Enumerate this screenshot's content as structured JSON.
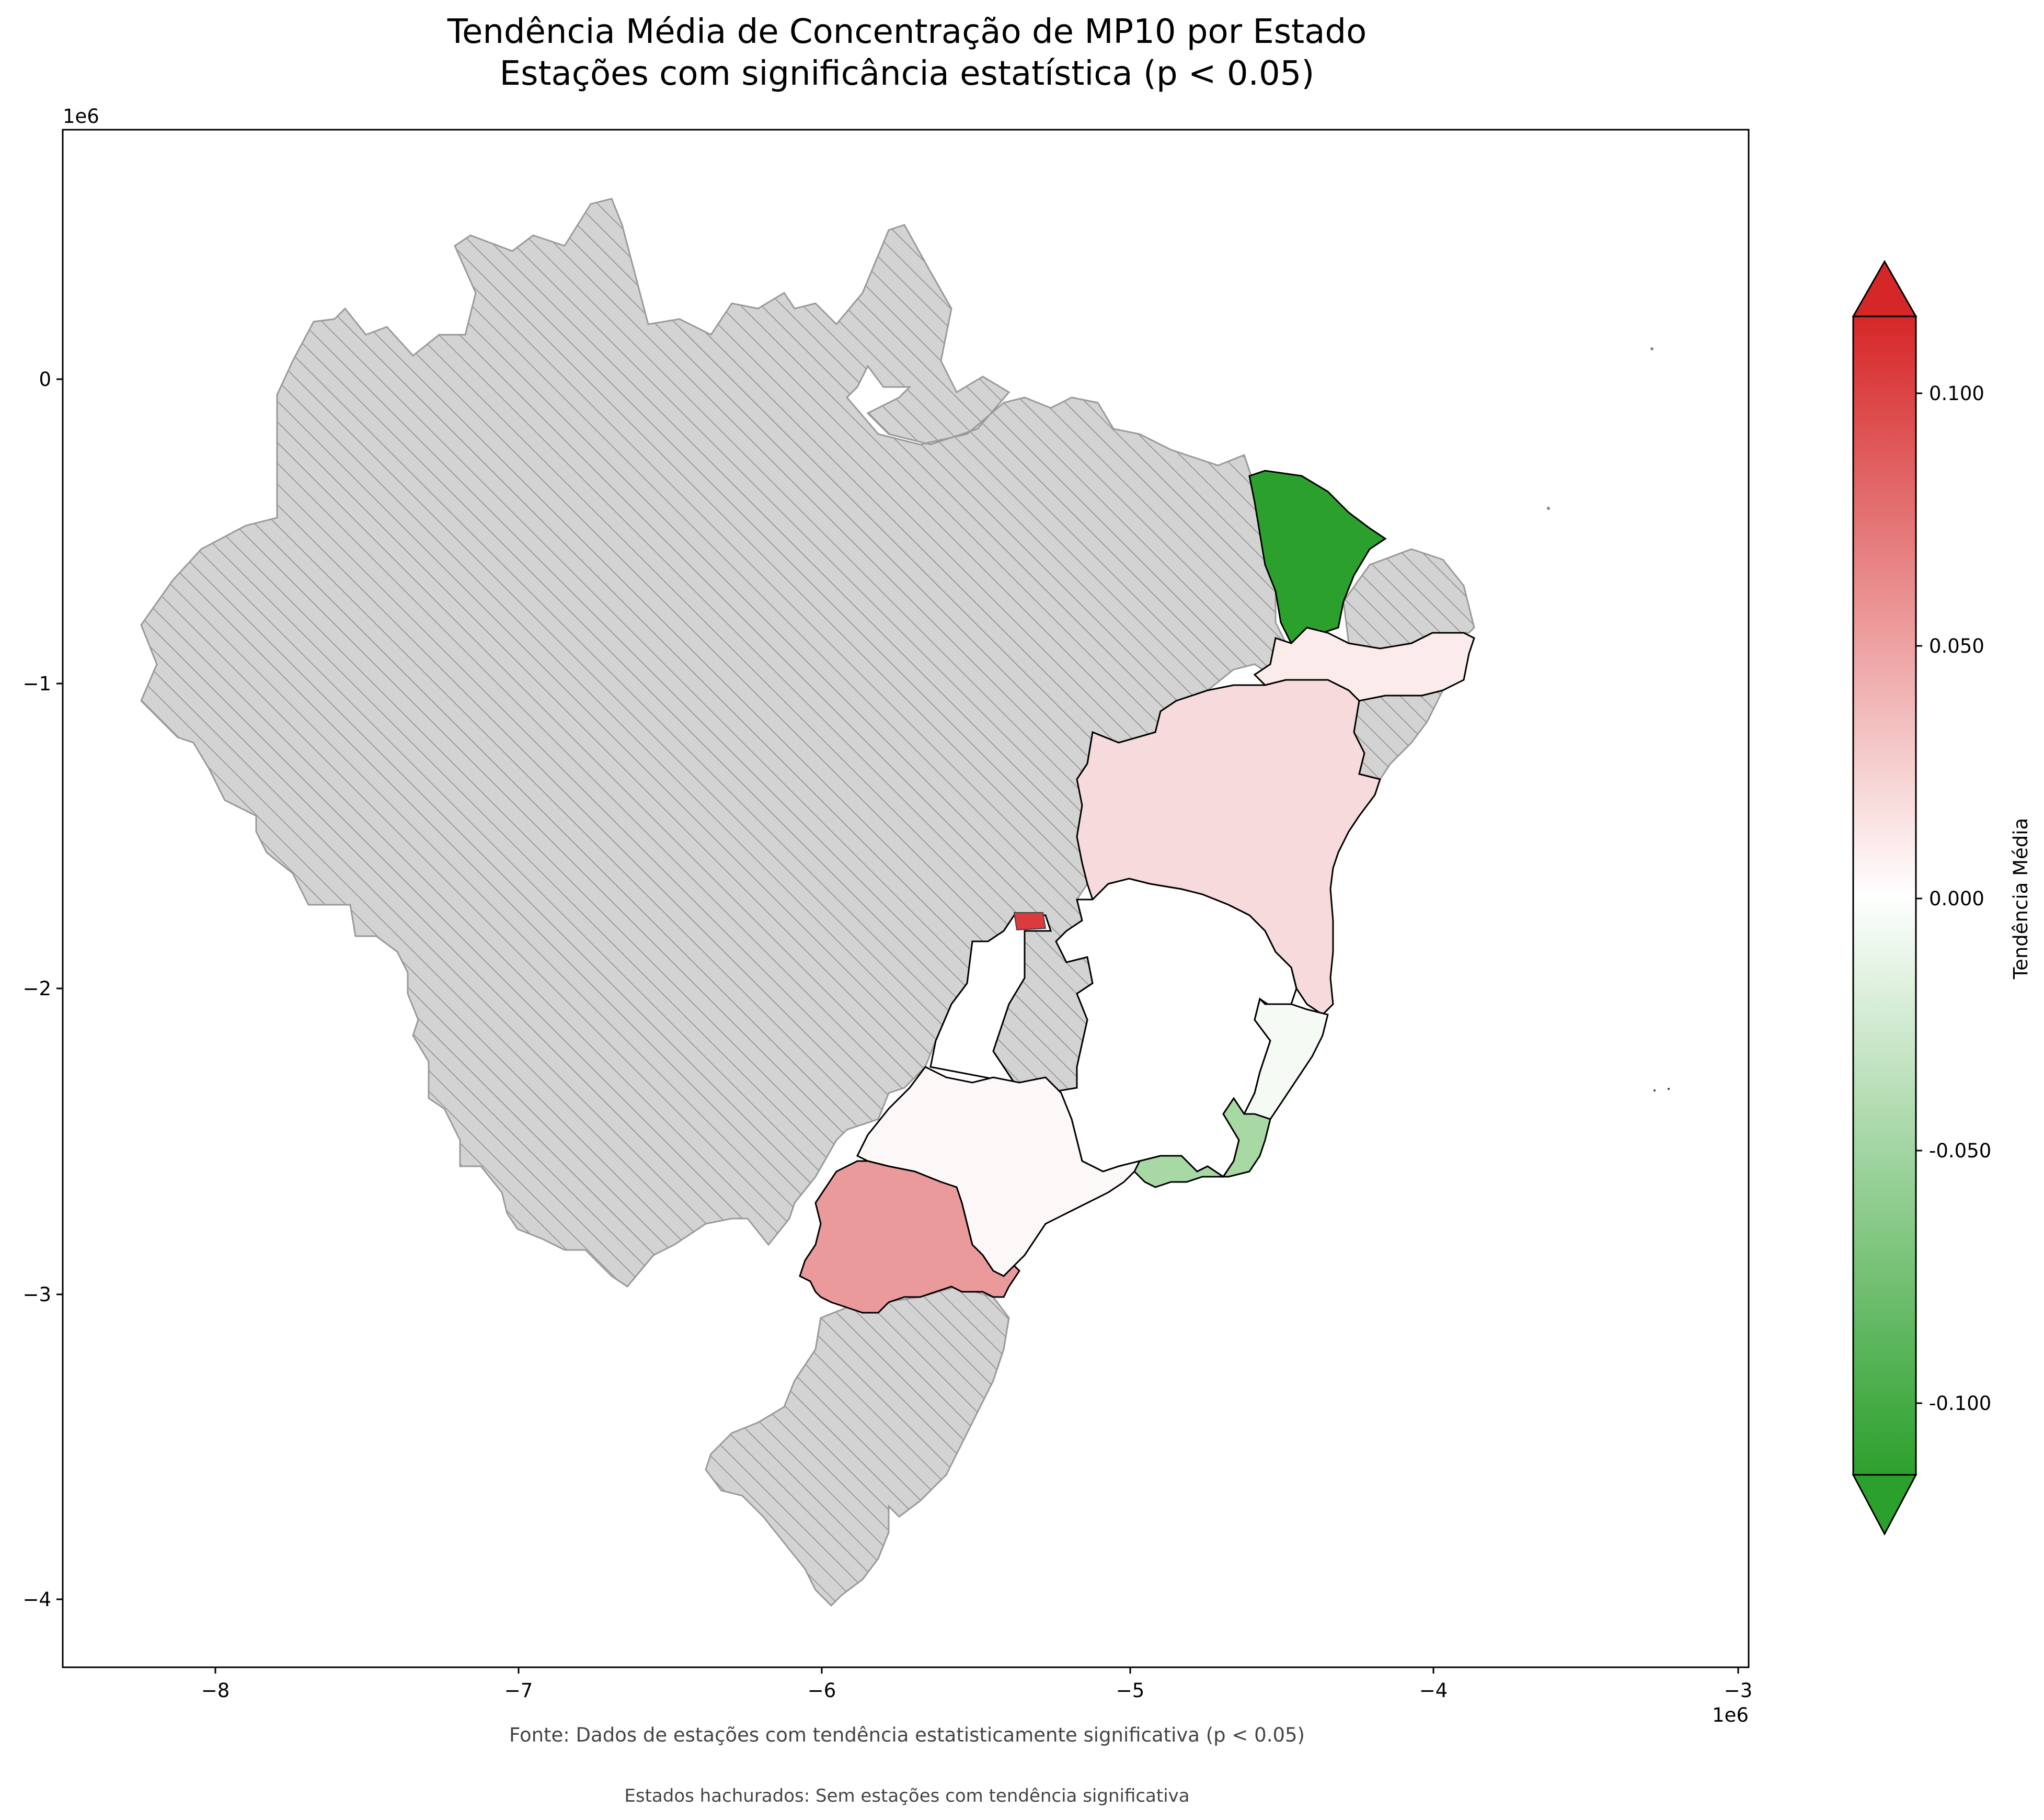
{
  "title_line1": "Tendência Média de Concentração de MP10 por Estado",
  "title_line2": "Estações com significância estatística (p < 0.05)",
  "map": {
    "x_ticks": [
      "−8",
      "−7",
      "−6",
      "−5",
      "−4",
      "−3"
    ],
    "y_ticks": [
      "0",
      "−1",
      "−2",
      "−3",
      "−4"
    ],
    "x_offset_label": "1e6",
    "y_offset_label": "1e6",
    "no_data_color": "#d3d3d3",
    "hatch": "///",
    "states": [
      {
        "name": "Ceará",
        "tendency": -0.115,
        "color": "#2ca02c"
      },
      {
        "name": "Pernambuco",
        "tendency": 0.01,
        "color": "#fbebea"
      },
      {
        "name": "Bahia",
        "tendency": 0.023,
        "color": "#f7dadb"
      },
      {
        "name": "Minas Gerais",
        "tendency": 0.0,
        "color": "#ffffff"
      },
      {
        "name": "Espírito Santo",
        "tendency": -0.003,
        "color": "#f6faf5"
      },
      {
        "name": "Rio de Janeiro",
        "tendency": -0.05,
        "color": "#a8d8a4"
      },
      {
        "name": "São Paulo",
        "tendency": 0.003,
        "color": "#fdf8f8"
      },
      {
        "name": "Paraná",
        "tendency": 0.05,
        "color": "#eb9a9b"
      },
      {
        "name": "Distrito Federal",
        "tendency": 0.1,
        "color": "#dc3a3c"
      }
    ]
  },
  "colorbar": {
    "label": "Tendência Média",
    "ticks": [
      "0.100",
      "0.050",
      "0.000",
      "-0.050",
      "-0.100"
    ],
    "min": -0.115,
    "max": 0.115,
    "color_low": "#2ca02c",
    "color_mid": "#ffffff",
    "color_high": "#d62728"
  },
  "footnote1": "Fonte: Dados de estações com tendência estatisticamente significativa (p < 0.05)",
  "footnote2": "Estados hachurados: Sem estações com tendência significativa"
}
